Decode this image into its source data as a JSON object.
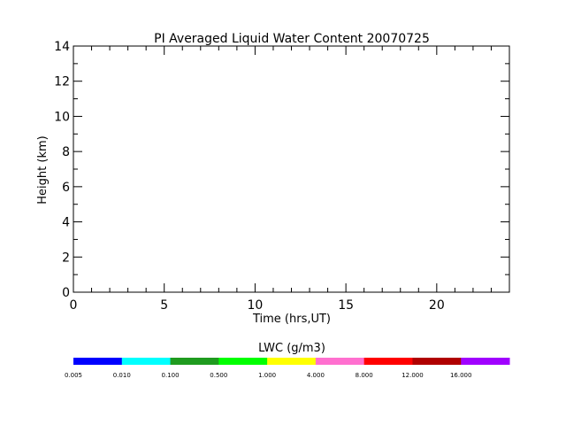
{
  "chart_data": {
    "type": "heatmap",
    "title": "PI Averaged Liquid Water Content 20070725",
    "xlabel": "Time (hrs,UT)",
    "ylabel": "Height (km)",
    "xlim": [
      0,
      24
    ],
    "ylim": [
      0,
      14
    ],
    "x_ticks": [
      0,
      5,
      10,
      15,
      20
    ],
    "y_ticks": [
      0,
      2,
      4,
      6,
      8,
      10,
      12,
      14
    ],
    "x_minor_step": 1,
    "y_minor_step": 1,
    "grid": false,
    "values": [],
    "colorbar": {
      "label": "LWC (g/m3)",
      "tick_labels": [
        "0.005",
        "0.010",
        "0.100",
        "0.500",
        "1.000",
        "4.000",
        "8.000",
        "12.000",
        "16.000"
      ],
      "colors": [
        "#0000ff",
        "#00ffff",
        "#1f9b1f",
        "#00ff00",
        "#ffff00",
        "#ff6fcf",
        "#ff0000",
        "#b00000",
        "#a000ff"
      ]
    }
  }
}
